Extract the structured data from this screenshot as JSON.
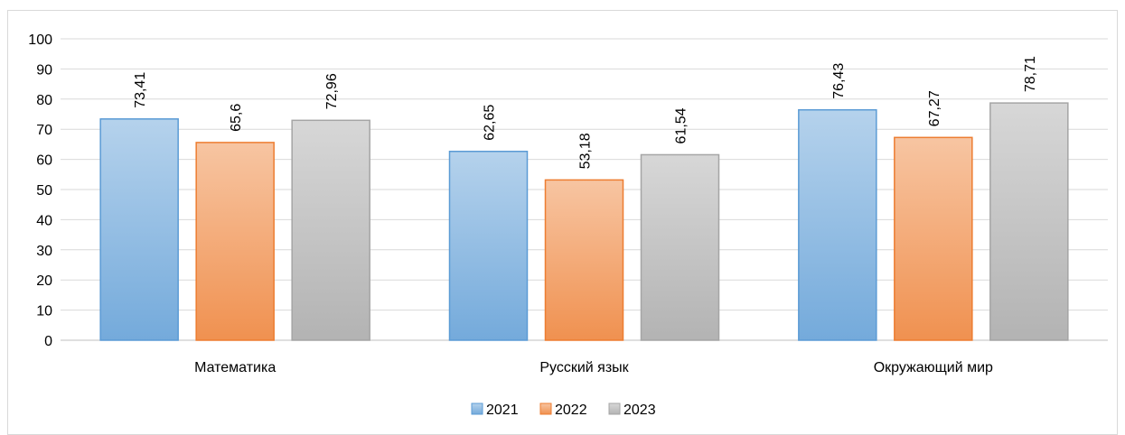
{
  "chart_data": {
    "type": "bar",
    "categories": [
      "Математика",
      "Русский язык",
      "Окружающий мир"
    ],
    "series": [
      {
        "name": "2021",
        "values": [
          73.41,
          62.65,
          76.43
        ],
        "labels": [
          "73,41",
          "62,65",
          "76,43"
        ],
        "color": "#5b9bd5"
      },
      {
        "name": "2022",
        "values": [
          65.6,
          53.18,
          67.27
        ],
        "labels": [
          "65,6",
          "53,18",
          "67,27"
        ],
        "color": "#ed7d31"
      },
      {
        "name": "2023",
        "values": [
          72.96,
          61.54,
          78.71
        ],
        "labels": [
          "72,96",
          "61,54",
          "78,71"
        ],
        "color": "#a5a5a5"
      }
    ],
    "ylim": [
      0,
      100
    ],
    "yticks": [
      0,
      10,
      20,
      30,
      40,
      50,
      60,
      70,
      80,
      90,
      100
    ],
    "grid": true,
    "legend_position": "bottom",
    "data_label_orientation": "vertical"
  }
}
